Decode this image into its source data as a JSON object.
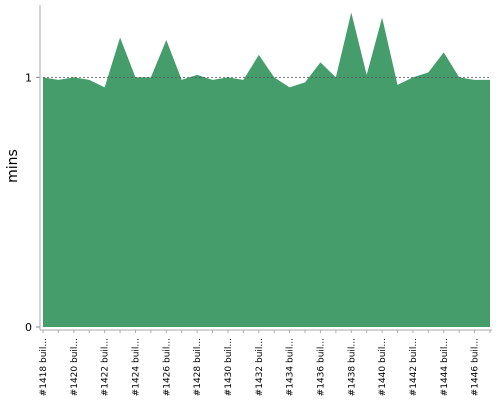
{
  "chart_data": {
    "type": "area",
    "y_label": "mins",
    "categories": [
      "#1418 buil...",
      null,
      "#1420 buil...",
      null,
      "#1422 buil...",
      null,
      "#1424 buil...",
      null,
      "#1426 buil...",
      null,
      "#1428 buil...",
      null,
      "#1430 buil...",
      null,
      "#1432 buil...",
      null,
      "#1434 buil...",
      null,
      "#1436 buil...",
      null,
      "#1438 buil...",
      null,
      "#1440 buil...",
      null,
      "#1442 buil...",
      null,
      "#1444 buil...",
      null,
      "#1446 buil...",
      null
    ],
    "values": [
      1.0,
      0.99,
      1.0,
      0.99,
      0.96,
      1.16,
      1.0,
      1.0,
      1.15,
      0.99,
      1.01,
      0.99,
      1.0,
      0.99,
      1.09,
      1.0,
      0.96,
      0.98,
      1.06,
      1.0,
      1.26,
      1.01,
      1.24,
      0.97,
      1.0,
      1.02,
      1.1,
      1.0,
      0.99,
      0.99
    ],
    "color": "#459d6b",
    "ylim": [
      0,
      1.29
    ],
    "yticks": [
      0,
      1
    ],
    "grid": true
  }
}
